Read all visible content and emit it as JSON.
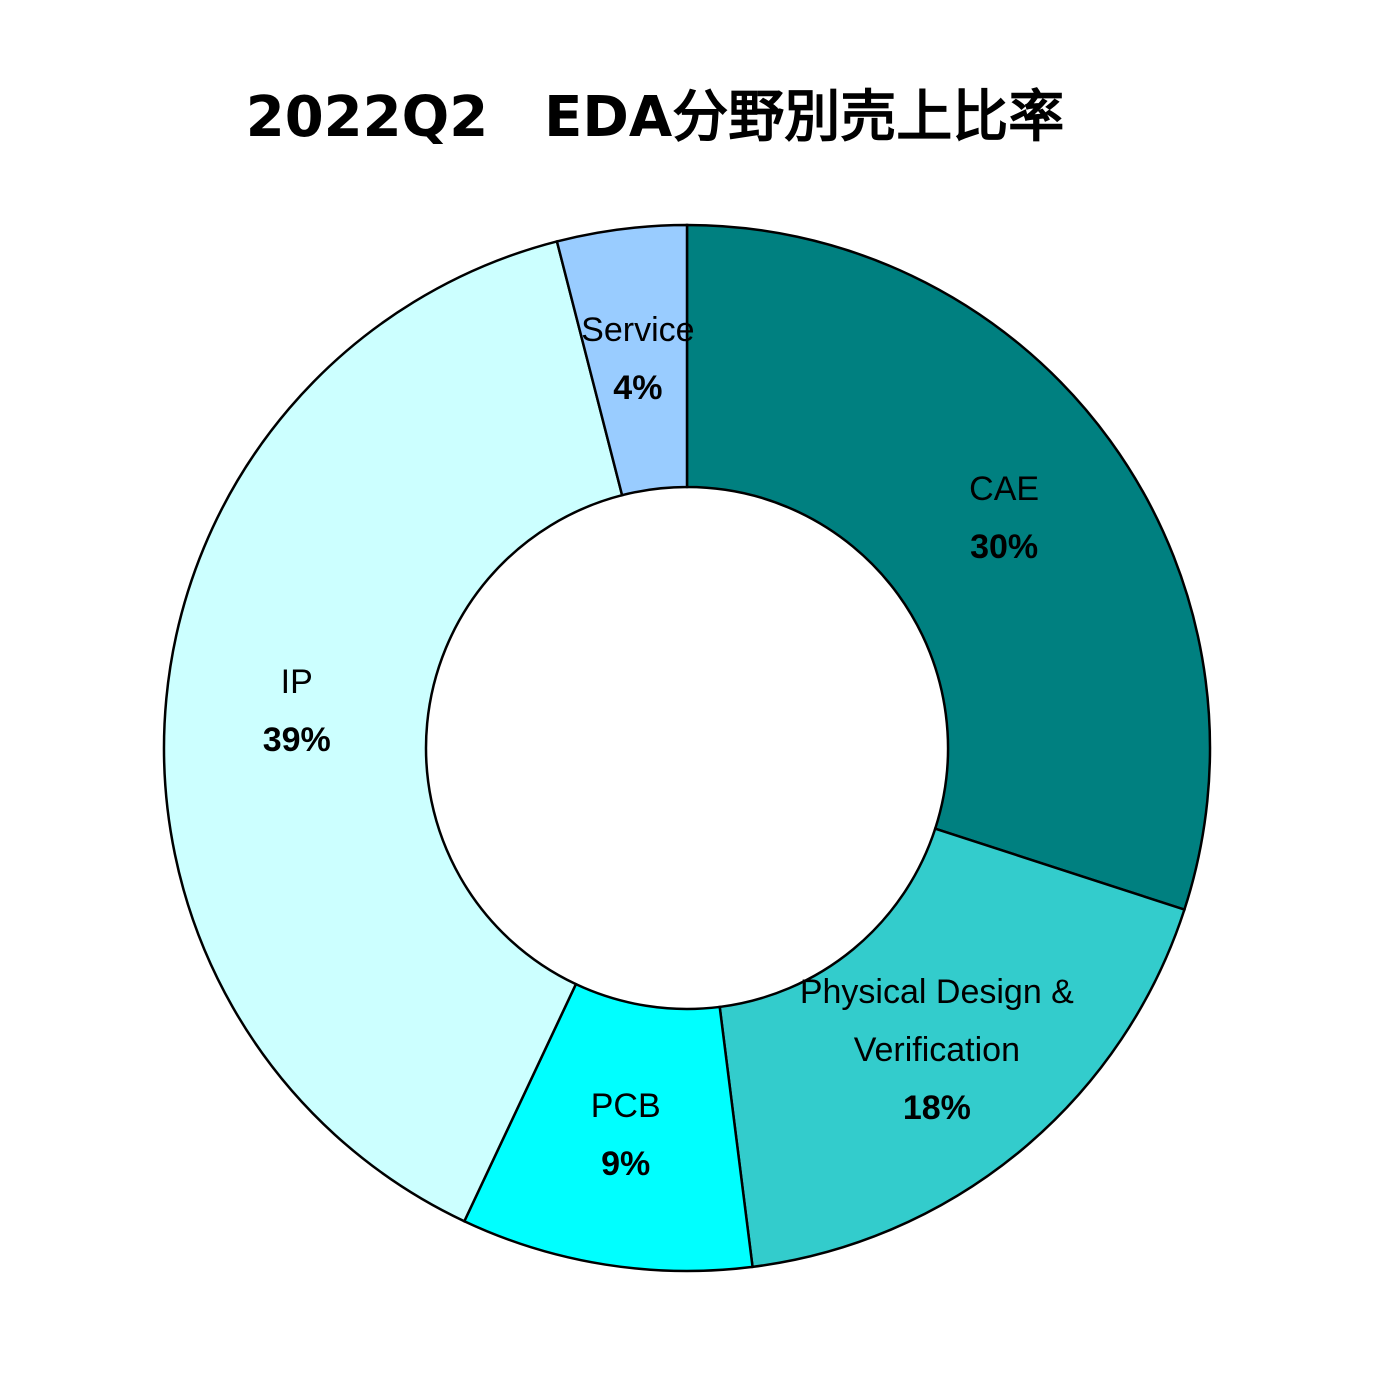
{
  "chart_data": {
    "type": "donut",
    "title": "2022Q2　EDA分野別売上比率",
    "categories": [
      "CAE",
      "Physical Design & Verification",
      "PCB",
      "IP",
      "Service"
    ],
    "values": [
      30,
      18,
      9,
      39,
      4
    ],
    "value_labels": [
      "30%",
      "18%",
      "9%",
      "39%",
      "4%"
    ],
    "colors": [
      "#008080",
      "#33CCCC",
      "#00FFFF",
      "#CCFFFF",
      "#99CCFF"
    ]
  }
}
